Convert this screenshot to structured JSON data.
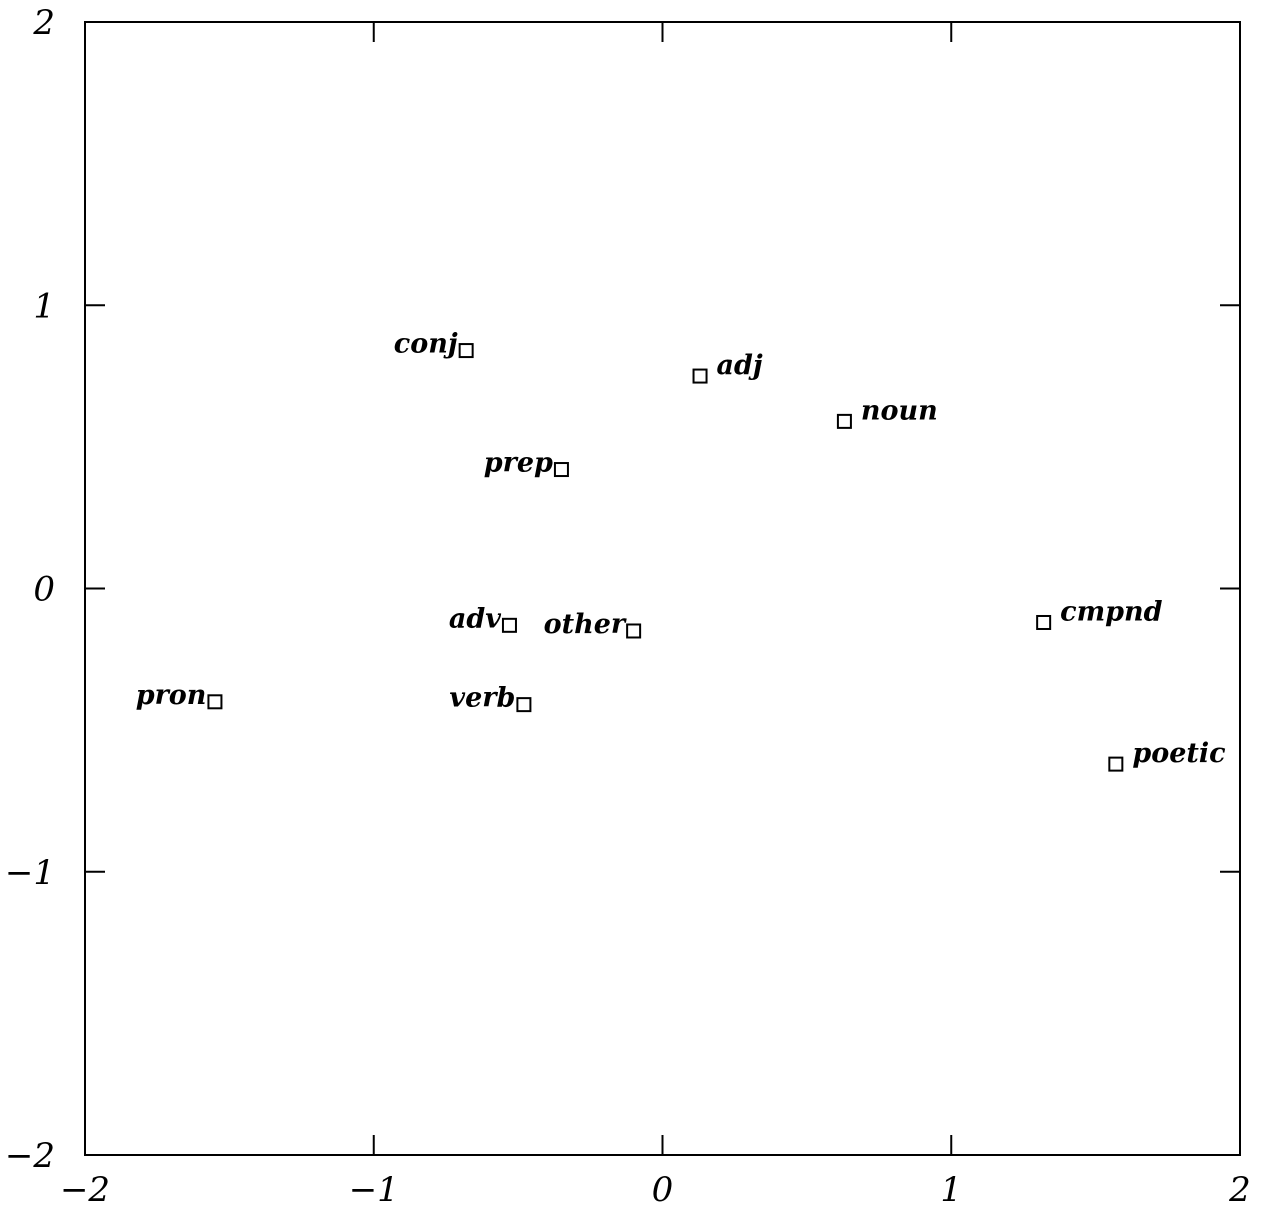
{
  "chart_data": {
    "type": "scatter",
    "title": "",
    "xlabel": "",
    "ylabel": "",
    "xlim": [
      -2,
      2
    ],
    "ylim": [
      -2,
      2
    ],
    "x_ticks": [
      -2,
      -1,
      0,
      1,
      2
    ],
    "y_ticks": [
      -2,
      -1,
      0,
      1,
      2
    ],
    "x_tick_labels": [
      "−2",
      "−1",
      "0",
      "1",
      "2"
    ],
    "y_tick_labels": [
      "−2",
      "−1",
      "0",
      "1",
      "2"
    ],
    "grid": false,
    "marker": "open-square",
    "points": [
      {
        "label": "conj",
        "x": -0.68,
        "y": 0.84,
        "label_side": "left"
      },
      {
        "label": "adj",
        "x": 0.13,
        "y": 0.75,
        "label_side": "right"
      },
      {
        "label": "noun",
        "x": 0.63,
        "y": 0.59,
        "label_side": "right"
      },
      {
        "label": "prep",
        "x": -0.35,
        "y": 0.42,
        "label_side": "left"
      },
      {
        "label": "adv",
        "x": -0.53,
        "y": -0.13,
        "label_side": "left"
      },
      {
        "label": "other",
        "x": -0.1,
        "y": -0.15,
        "label_side": "left"
      },
      {
        "label": "cmpnd",
        "x": 1.32,
        "y": -0.12,
        "label_side": "right"
      },
      {
        "label": "pron",
        "x": -1.55,
        "y": -0.4,
        "label_side": "left"
      },
      {
        "label": "verb",
        "x": -0.48,
        "y": -0.41,
        "label_side": "left"
      },
      {
        "label": "poetic",
        "x": 1.57,
        "y": -0.62,
        "label_side": "right"
      }
    ]
  }
}
